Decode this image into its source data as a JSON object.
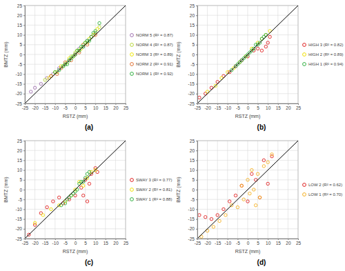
{
  "chart_data": [
    {
      "type": "scatter",
      "title": "(a)",
      "x_label": "RSTZ (mm)",
      "y_label": "BMTZ (mm)",
      "xlim": [
        -25,
        25
      ],
      "ylim": [
        -25,
        25
      ],
      "xticks": [
        -25,
        -20,
        -15,
        -10,
        -5,
        0,
        5,
        10,
        15,
        20,
        25
      ],
      "yticks": [
        -25,
        -20,
        -15,
        -10,
        -5,
        0,
        5,
        10,
        15,
        20,
        25
      ],
      "grid": true,
      "legend": "right",
      "marker": "circle-open",
      "reference_line": {
        "x": [
          -25,
          25
        ],
        "y": [
          -25,
          25
        ],
        "color": "#000000"
      },
      "series": [
        {
          "name": "NORM 5 (R² = 0.87)",
          "color": "#a070b0",
          "x": [
            -22,
            -20,
            -17,
            -14,
            -11,
            -8,
            -5,
            -3,
            0,
            2,
            4,
            6,
            8,
            10
          ],
          "values": [
            -19,
            -17,
            -15,
            -12,
            -10,
            -7,
            -5,
            -3,
            0,
            3,
            4,
            7,
            9,
            11
          ]
        },
        {
          "name": "NORM 4 (R² = 0.87)",
          "color": "#b8d838",
          "x": [
            -15,
            -12,
            -9,
            -6,
            -4,
            -2,
            0,
            2,
            4,
            6,
            8,
            10,
            12
          ],
          "values": [
            -13,
            -11,
            -9,
            -6,
            -4,
            -1,
            1,
            2,
            5,
            6,
            9,
            11,
            14
          ]
        },
        {
          "name": "NORM 3 (R² = 0.89)",
          "color": "#f0e800",
          "x": [
            -13,
            -10,
            -7,
            -5,
            -3,
            -1,
            1,
            3,
            5,
            7,
            9,
            11
          ],
          "values": [
            -12,
            -9,
            -6,
            -5,
            -2,
            -1,
            2,
            3,
            6,
            8,
            10,
            13
          ]
        },
        {
          "name": "NORM 2 (R² = 0.91)",
          "color": "#e07030",
          "x": [
            -12,
            -9,
            -7,
            -5,
            -2,
            0,
            2,
            4,
            6,
            8,
            10
          ],
          "values": [
            -11,
            -10,
            -7,
            -4,
            -3,
            0,
            1,
            5,
            5,
            9,
            10
          ]
        },
        {
          "name": "NORM 1 (R² = 0.92)",
          "color": "#30b040",
          "x": [
            -10,
            -8,
            -6,
            -5,
            -4,
            -3,
            -2,
            -1,
            0,
            1,
            2,
            3,
            4,
            5,
            6,
            7,
            8,
            9,
            10,
            12
          ],
          "values": [
            -9,
            -8,
            -6,
            -5,
            -5,
            -3,
            -2,
            -1,
            0,
            2,
            2,
            4,
            4,
            6,
            7,
            7,
            9,
            11,
            12,
            16
          ]
        }
      ]
    },
    {
      "type": "scatter",
      "title": "(b)",
      "x_label": "RSTZ (mm)",
      "y_label": "BMTZ (mm)",
      "xlim": [
        -25,
        25
      ],
      "ylim": [
        -25,
        25
      ],
      "xticks": [
        -25,
        -20,
        -15,
        -10,
        -5,
        0,
        5,
        10,
        15,
        20,
        25
      ],
      "yticks": [
        -25,
        -20,
        -15,
        -10,
        -5,
        0,
        5,
        10,
        15,
        20,
        25
      ],
      "grid": true,
      "legend": "right",
      "marker": "circle-open",
      "reference_line": {
        "x": [
          -25,
          25
        ],
        "y": [
          -25,
          25
        ],
        "color": "#000000"
      },
      "series": [
        {
          "name": "HIGH 3 (R² = 0.82)",
          "color": "#e02020",
          "x": [
            -24,
            -21,
            -18,
            -15,
            -12,
            -9,
            -6,
            -3,
            0,
            3,
            5,
            7,
            9,
            10,
            11
          ],
          "values": [
            -22,
            -20,
            -17,
            -14,
            -11,
            -9,
            -6,
            -3,
            -1,
            2,
            3,
            2,
            4,
            6,
            9
          ]
        },
        {
          "name": "HIGH 2 (R² = 0.89)",
          "color": "#f0e000",
          "x": [
            -20,
            -16,
            -13,
            -10,
            -7,
            -4,
            -1,
            2,
            5,
            7,
            9,
            11
          ],
          "values": [
            -19,
            -16,
            -12,
            -9,
            -7,
            -4,
            -1,
            3,
            6,
            8,
            10,
            12
          ]
        },
        {
          "name": "HIGH 1 (R² = 0.94)",
          "color": "#30b040",
          "x": [
            -8,
            -6,
            -5,
            -4,
            -3,
            -2,
            -1,
            0,
            1,
            2,
            3,
            4,
            5,
            6,
            7,
            8,
            9
          ],
          "values": [
            -8,
            -6,
            -5,
            -4,
            -3,
            -2,
            -1,
            0,
            1,
            2,
            3,
            5,
            5,
            6,
            8,
            9,
            10
          ]
        }
      ]
    },
    {
      "type": "scatter",
      "title": "(c)",
      "x_label": "RSTZ (mm)",
      "y_label": "BMTZ (mm)",
      "xlim": [
        -25,
        25
      ],
      "ylim": [
        -25,
        25
      ],
      "xticks": [
        -25,
        -20,
        -15,
        -10,
        -5,
        0,
        5,
        10,
        15,
        20,
        25
      ],
      "yticks": [
        -25,
        -20,
        -15,
        -10,
        -5,
        0,
        5,
        10,
        15,
        20,
        25
      ],
      "grid": true,
      "legend": "right",
      "marker": "circle-open",
      "reference_line": {
        "x": [
          -25,
          25
        ],
        "y": [
          -25,
          25
        ],
        "color": "#000000"
      },
      "series": [
        {
          "name": "SWAY 3 (R² = 0.77)",
          "color": "#e02020",
          "x": [
            -23,
            -20,
            -17,
            -14,
            -11,
            -8,
            -6,
            -3,
            0,
            3,
            4,
            5,
            6,
            7,
            8,
            10,
            11
          ],
          "values": [
            -23,
            -18,
            -12,
            -9,
            -6,
            -4,
            -7,
            -5,
            -3,
            1,
            -3,
            5,
            -6,
            3,
            8,
            11,
            9
          ]
        },
        {
          "name": "SWAY 2 (R² = 0.81)",
          "color": "#f0e000",
          "x": [
            -20,
            -16,
            -12,
            -8,
            -5,
            -2,
            0,
            2,
            4,
            6,
            8,
            10
          ],
          "values": [
            -17,
            -13,
            -10,
            -8,
            -6,
            -3,
            0,
            4,
            2,
            6,
            9,
            10
          ]
        },
        {
          "name": "SWAY 1 (R² = 0.88)",
          "color": "#30b040",
          "x": [
            -7,
            -5,
            -4,
            -3,
            -2,
            -1,
            0,
            1,
            2,
            3,
            4,
            5,
            6,
            7
          ],
          "values": [
            -8,
            -7,
            -5,
            -4,
            -3,
            -2,
            -1,
            0,
            3,
            4,
            4,
            6,
            8,
            9
          ]
        }
      ]
    },
    {
      "type": "scatter",
      "title": "(d)",
      "x_label": "RSTZ (mm)",
      "y_label": "BMTZ (mm)",
      "xlim": [
        -25,
        25
      ],
      "ylim": [
        -25,
        25
      ],
      "xticks": [
        -25,
        -20,
        -15,
        -10,
        -5,
        0,
        5,
        10,
        15,
        20,
        25
      ],
      "yticks": [
        -25,
        -20,
        -15,
        -10,
        -5,
        0,
        5,
        10,
        15,
        20,
        25
      ],
      "grid": true,
      "legend": "right",
      "marker": "circle-open",
      "reference_line": {
        "x": [
          -25,
          25
        ],
        "y": [
          -25,
          25
        ],
        "color": "#000000"
      },
      "series": [
        {
          "name": "LOW 2 (R² = 0.62)",
          "color": "#e02020",
          "x": [
            -24,
            -21,
            -18,
            -15,
            -12,
            -9,
            -6,
            -3,
            0,
            2,
            4,
            6,
            8,
            10,
            12
          ],
          "values": [
            -13,
            -14,
            -15,
            -13,
            -10,
            -6,
            -3,
            2,
            -6,
            8,
            5,
            -4,
            15,
            3,
            17
          ]
        },
        {
          "name": "LOW 1 (R² = 0.70)",
          "color": "#f5b020",
          "x": [
            -23,
            -20,
            -17,
            -14,
            -11,
            -8,
            -5,
            -3,
            -2,
            0,
            1,
            2,
            3,
            4,
            5,
            6,
            8,
            10,
            12
          ],
          "values": [
            -24,
            -21,
            -19,
            -16,
            -13,
            -8,
            -9,
            2,
            -5,
            5,
            -2,
            10,
            0,
            -8,
            8,
            -4,
            12,
            14,
            18
          ]
        }
      ]
    }
  ]
}
